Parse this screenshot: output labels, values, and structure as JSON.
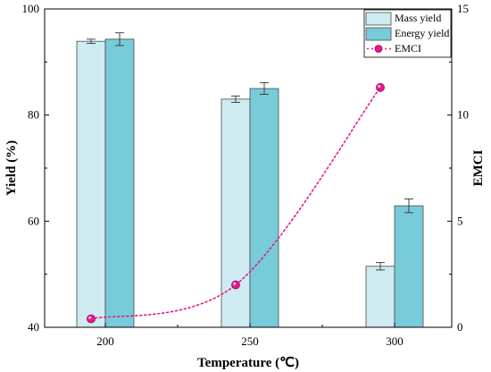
{
  "chart_data": {
    "type": "bar",
    "title": "",
    "xlabel": "Temperature (℃)",
    "ylabel_left": "Yield (%)",
    "ylabel_right": "EMCI",
    "categories": [
      "200",
      "250",
      "300"
    ],
    "ylim_left": [
      40,
      100
    ],
    "yticks_left": [
      "40",
      "60",
      "80",
      "100"
    ],
    "ylim_right": [
      0,
      15
    ],
    "yticks_right": [
      "0",
      "5",
      "10",
      "15"
    ],
    "series": [
      {
        "name": "Mass yield",
        "kind": "bar",
        "axis": "left",
        "color": "#cdebf0",
        "values": [
          93.9,
          83.0,
          51.5
        ],
        "errors": [
          0.4,
          0.6,
          0.7
        ]
      },
      {
        "name": "Energy yield",
        "kind": "bar",
        "axis": "left",
        "color": "#78cbd8",
        "values": [
          94.3,
          85.0,
          62.9
        ],
        "errors": [
          1.2,
          1.1,
          1.3
        ]
      },
      {
        "name": "EMCI",
        "kind": "line",
        "axis": "right",
        "color": "#e6198c",
        "style": "dotted",
        "values": [
          0.4,
          2.0,
          11.3
        ]
      }
    ],
    "legend_position": "top-right",
    "grid": false
  }
}
